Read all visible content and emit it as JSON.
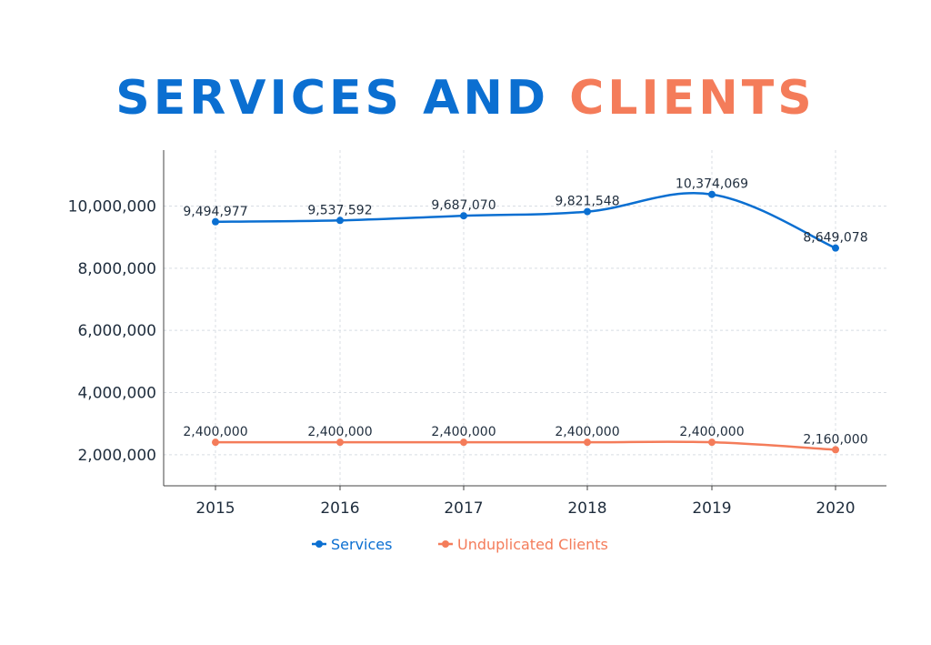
{
  "chart_data": {
    "type": "line",
    "title_parts": [
      {
        "text": "SERVICES AND ",
        "color": "#0b6fd1"
      },
      {
        "text": "CLIENTS",
        "color": "#f47c5a"
      }
    ],
    "x": [
      "2015",
      "2016",
      "2017",
      "2018",
      "2019",
      "2020"
    ],
    "y_ticks": [
      2000000,
      4000000,
      6000000,
      8000000,
      10000000
    ],
    "y_tick_labels": [
      "2,000,000",
      "4,000,000",
      "6,000,000",
      "8,000,000",
      "10,000,000"
    ],
    "ylim": [
      1000000,
      11800000
    ],
    "grid": true,
    "legend_position": "bottom",
    "series": [
      {
        "name": "Services",
        "color": "#0b6fd1",
        "values": [
          9494977,
          9537592,
          9687070,
          9821548,
          10374069,
          8649078
        ],
        "labels": [
          "9,494,977",
          "9,537,592",
          "9,687,070",
          "9,821,548",
          "10,374,069",
          "8,649,078"
        ]
      },
      {
        "name": "Unduplicated Clients",
        "color": "#f47c5a",
        "values": [
          2400000,
          2400000,
          2400000,
          2400000,
          2400000,
          2160000
        ],
        "labels": [
          "2,400,000",
          "2,400,000",
          "2,400,000",
          "2,400,000",
          "2,400,000",
          "2,160,000"
        ]
      }
    ]
  }
}
